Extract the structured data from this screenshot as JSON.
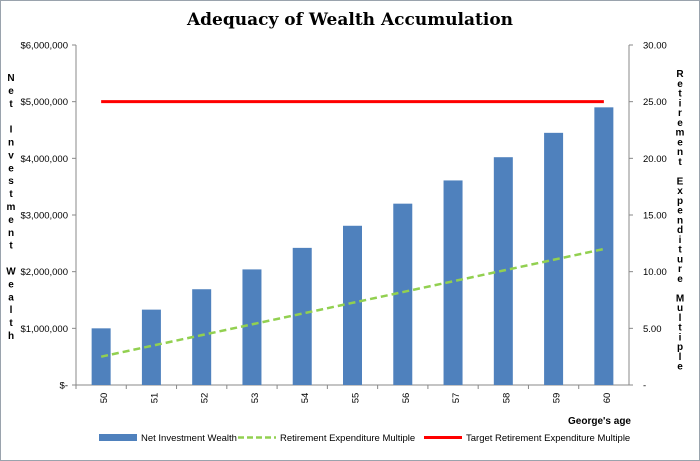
{
  "chart_data": {
    "type": "bar",
    "title": "Adequacy of Wealth Accumulation",
    "xlabel": "George's age",
    "ylabel": "Net Investment Wealth",
    "y2label": "Retirement Expenditure Multiple",
    "categories": [
      "50",
      "51",
      "52",
      "53",
      "54",
      "55",
      "56",
      "57",
      "58",
      "59",
      "60"
    ],
    "ylim": [
      0,
      6000000
    ],
    "yticks": [
      "$-",
      "$1,000,000",
      "$2,000,000",
      "$3,000,000",
      "$4,000,000",
      "$5,000,000",
      "$6,000,000"
    ],
    "y2lim": [
      0,
      30
    ],
    "y2ticks": [
      "-",
      "5.00",
      "10.00",
      "15.00",
      "20.00",
      "25.00",
      "30.00"
    ],
    "legend_position": "bottom",
    "grid": false,
    "series": [
      {
        "name": "Net Investment Wealth",
        "kind": "bar",
        "axis": "left",
        "color": "#4f81bd",
        "values": [
          1000000,
          1330000,
          1690000,
          2040000,
          2420000,
          2810000,
          3200000,
          3610000,
          4020000,
          4450000,
          4900000
        ]
      },
      {
        "name": "Retirement Expenditure Multiple",
        "kind": "line",
        "style": "dashed",
        "axis": "right",
        "color": "#92d050",
        "values": [
          2.5,
          3.45,
          4.4,
          5.35,
          6.3,
          7.25,
          8.2,
          9.15,
          10.1,
          11.05,
          12.0
        ]
      },
      {
        "name": "Target Retirement Expenditure Multiple",
        "kind": "line",
        "style": "solid",
        "axis": "right",
        "color": "#ff0000",
        "values": [
          25,
          25,
          25,
          25,
          25,
          25,
          25,
          25,
          25,
          25,
          25
        ]
      }
    ]
  }
}
